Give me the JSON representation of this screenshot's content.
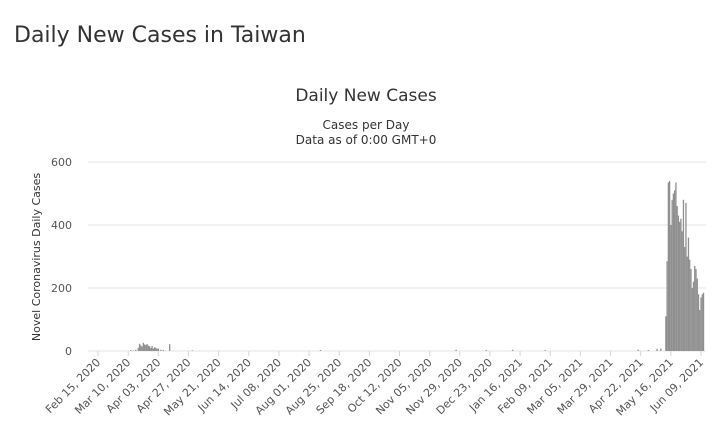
{
  "page_title": "Daily New Cases in Taiwan",
  "chart_data": {
    "type": "bar",
    "title": "Daily New Cases",
    "subtitle": "Cases per Day",
    "subtitle2": "Data as of 0:00 GMT+0",
    "y_label": "Novel Coronavirus Daily Cases",
    "color": "#8f8f8f",
    "grid": true,
    "x": [
      "2020-03-12",
      "2020-03-14",
      "2020-03-16",
      "2020-03-18",
      "2020-03-19",
      "2020-03-20",
      "2020-03-21",
      "2020-03-22",
      "2020-03-23",
      "2020-03-24",
      "2020-03-25",
      "2020-03-26",
      "2020-03-27",
      "2020-03-28",
      "2020-03-29",
      "2020-03-30",
      "2020-03-31",
      "2020-04-01",
      "2020-04-02",
      "2020-04-03",
      "2020-04-05",
      "2020-04-07",
      "2020-04-12",
      "2020-04-30",
      "2020-08-10",
      "2020-11-26",
      "2020-12-20",
      "2021-01-10",
      "2021-02-05",
      "2021-04-20",
      "2021-04-28",
      "2021-05-05",
      "2021-05-08",
      "2021-05-12",
      "2021-05-13",
      "2021-05-14",
      "2021-05-15",
      "2021-05-16",
      "2021-05-17",
      "2021-05-18",
      "2021-05-19",
      "2021-05-20",
      "2021-05-21",
      "2021-05-22",
      "2021-05-23",
      "2021-05-24",
      "2021-05-25",
      "2021-05-26",
      "2021-05-27",
      "2021-05-28",
      "2021-05-29",
      "2021-05-30",
      "2021-05-31",
      "2021-06-01",
      "2021-06-02",
      "2021-06-03",
      "2021-06-04",
      "2021-06-05",
      "2021-06-06",
      "2021-06-07",
      "2021-06-08",
      "2021-06-09",
      "2021-06-10",
      "2021-06-11"
    ],
    "values": [
      3,
      2,
      4,
      10,
      23,
      18,
      14,
      26,
      21,
      19,
      22,
      17,
      15,
      10,
      16,
      8,
      12,
      10,
      7,
      8,
      4,
      3,
      22,
      2,
      3,
      4,
      3,
      4,
      3,
      4,
      3,
      7,
      8,
      110,
      285,
      535,
      540,
      400,
      480,
      500,
      510,
      535,
      460,
      430,
      410,
      420,
      380,
      480,
      330,
      470,
      300,
      360,
      290,
      260,
      200,
      220,
      270,
      260,
      230,
      180,
      130,
      170,
      180,
      185
    ],
    "xlim": [
      "2020-02-07",
      "2021-06-13"
    ],
    "xticks": [
      {
        "value": "2020-02-15",
        "label": "Feb 15, 2020"
      },
      {
        "value": "2020-03-10",
        "label": "Mar 10, 2020"
      },
      {
        "value": "2020-04-03",
        "label": "Apr 03, 2020"
      },
      {
        "value": "2020-04-27",
        "label": "Apr 27, 2020"
      },
      {
        "value": "2020-05-21",
        "label": "May 21, 2020"
      },
      {
        "value": "2020-06-14",
        "label": "Jun 14, 2020"
      },
      {
        "value": "2020-07-08",
        "label": "Jul 08, 2020"
      },
      {
        "value": "2020-08-01",
        "label": "Aug 01, 2020"
      },
      {
        "value": "2020-08-25",
        "label": "Aug 25, 2020"
      },
      {
        "value": "2020-09-18",
        "label": "Sep 18, 2020"
      },
      {
        "value": "2020-10-12",
        "label": "Oct 12, 2020"
      },
      {
        "value": "2020-11-05",
        "label": "Nov 05, 2020"
      },
      {
        "value": "2020-11-29",
        "label": "Nov 29, 2020"
      },
      {
        "value": "2020-12-23",
        "label": "Dec 23, 2020"
      },
      {
        "value": "2021-01-16",
        "label": "Jan 16, 2021"
      },
      {
        "value": "2021-02-09",
        "label": "Feb 09, 2021"
      },
      {
        "value": "2021-03-05",
        "label": "Mar 05, 2021"
      },
      {
        "value": "2021-03-29",
        "label": "Mar 29, 2021"
      },
      {
        "value": "2021-04-22",
        "label": "Apr 22, 2021"
      },
      {
        "value": "2021-05-16",
        "label": "May 16, 2021"
      },
      {
        "value": "2021-06-09",
        "label": "Jun 09, 2021"
      }
    ],
    "ylim": [
      0,
      600
    ],
    "yticks": [
      0,
      200,
      400,
      600
    ]
  }
}
